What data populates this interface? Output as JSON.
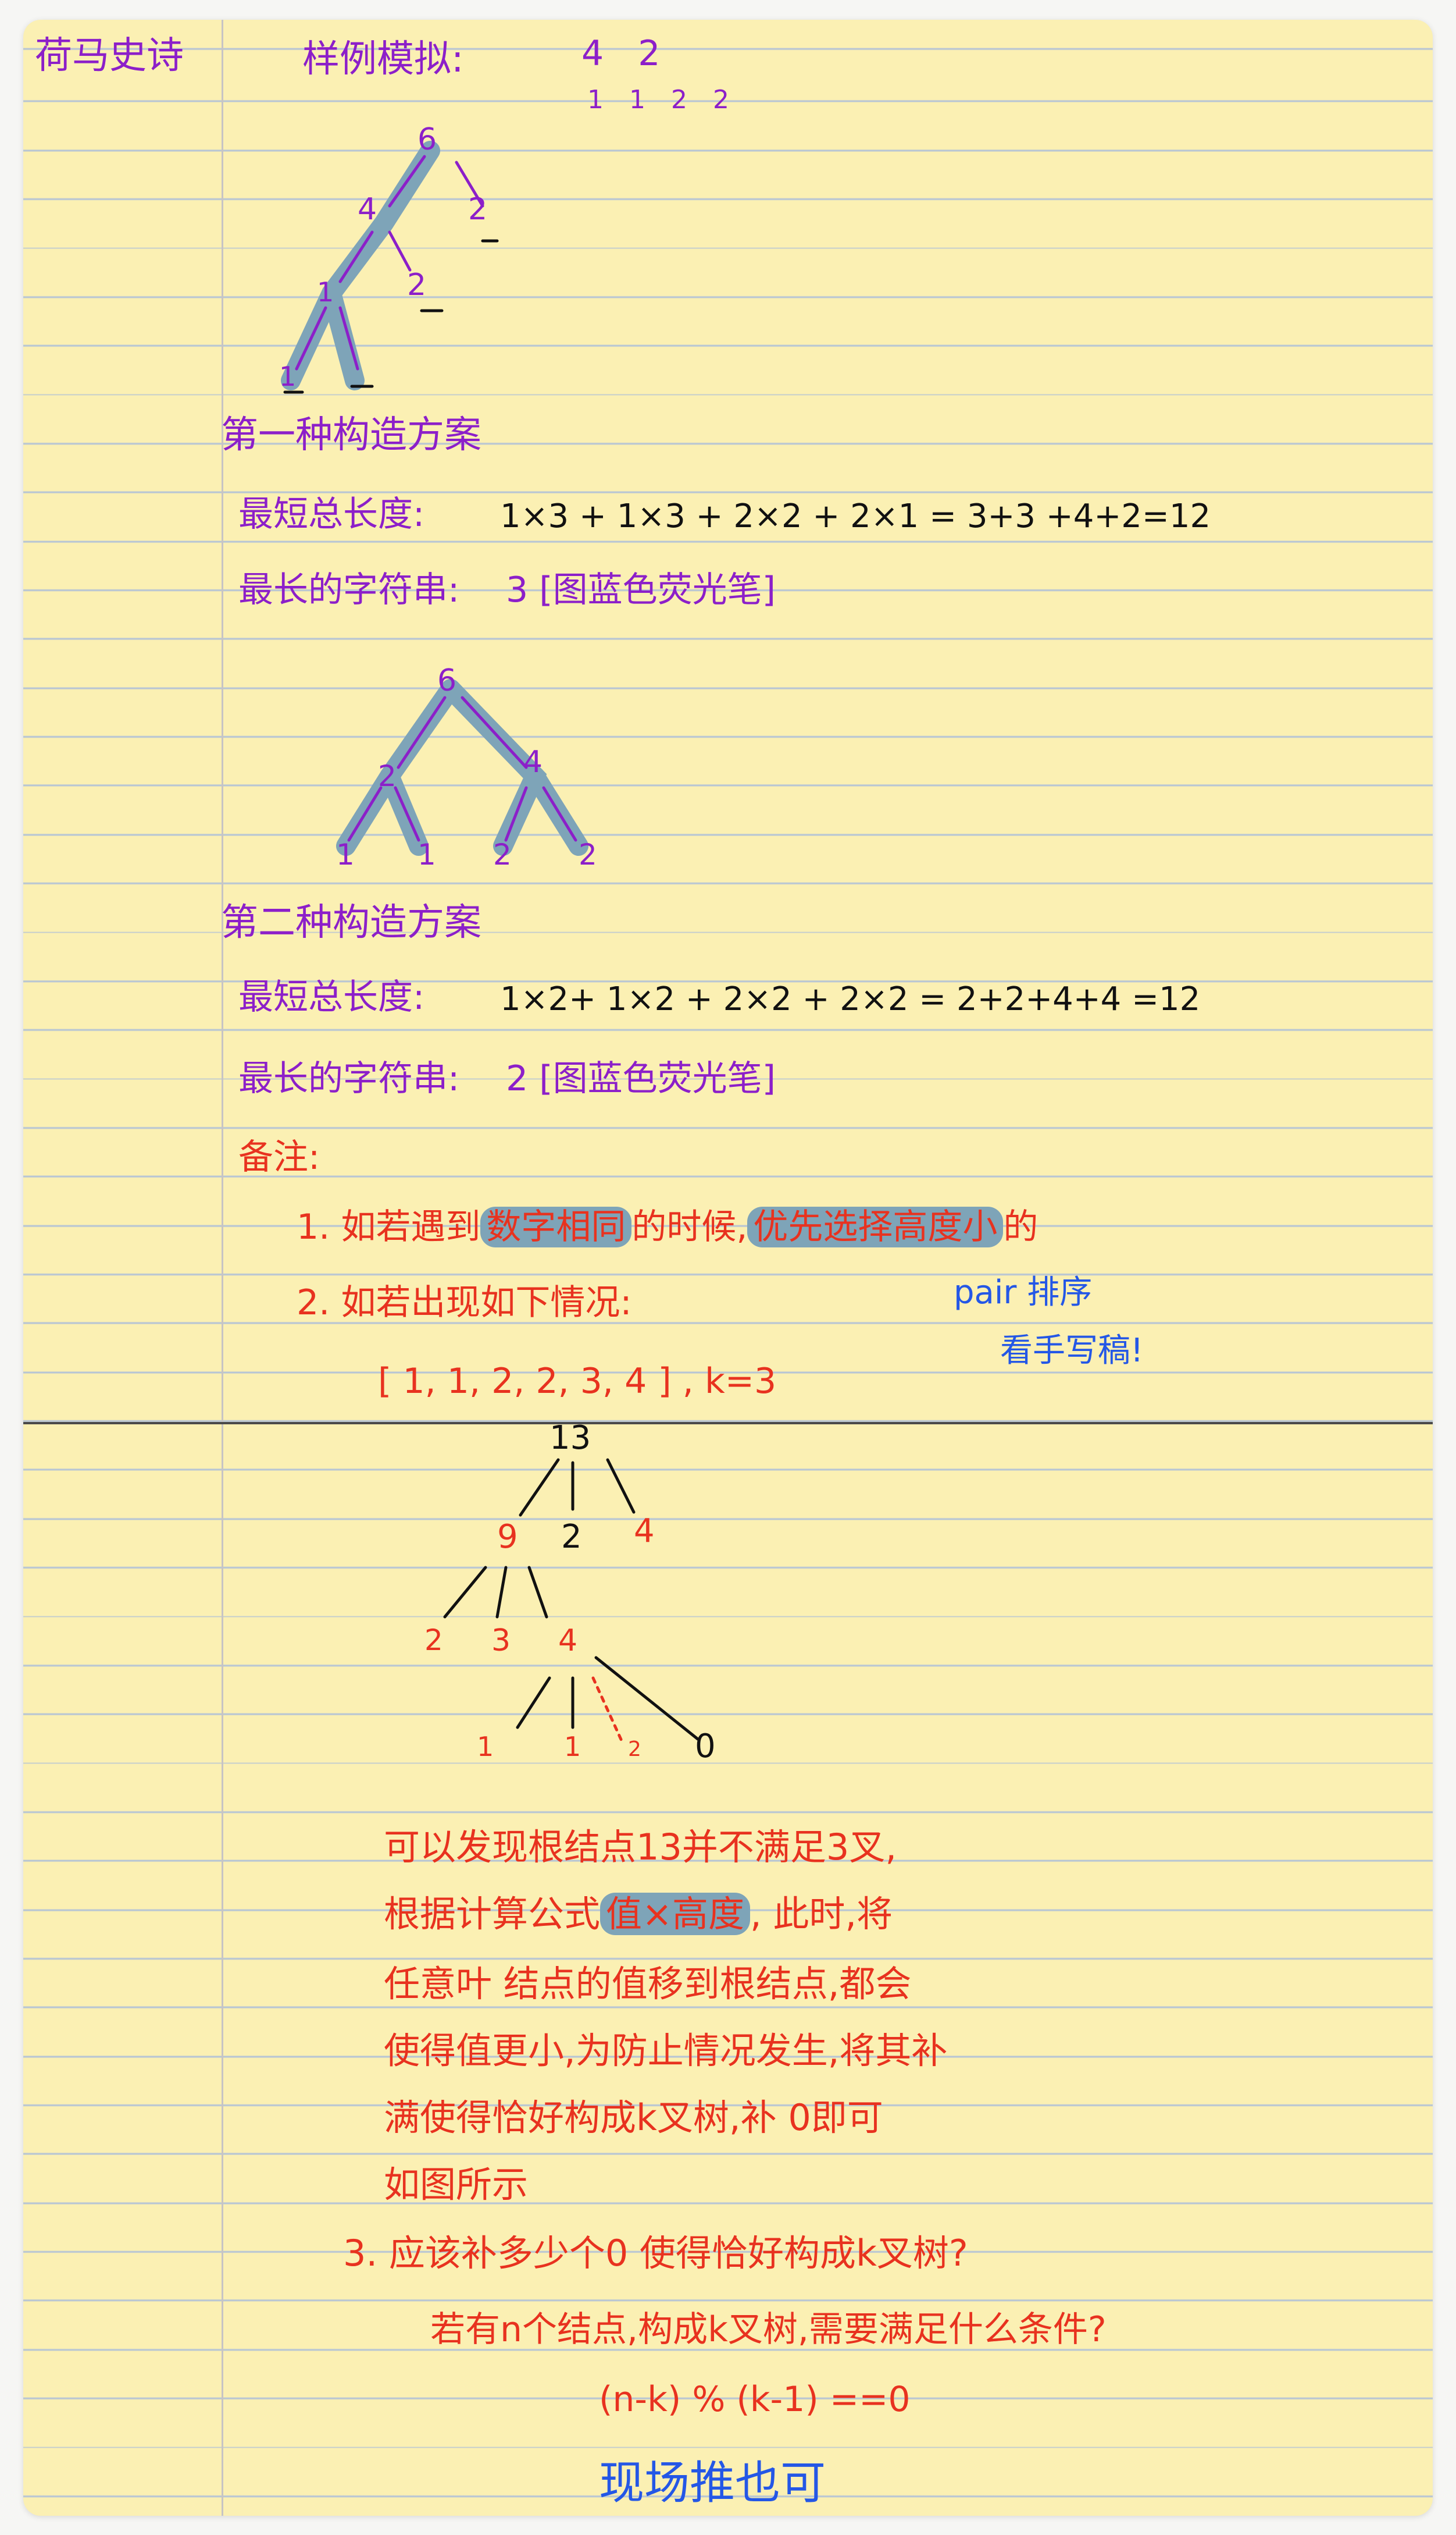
{
  "header": {
    "author": "荷马史诗",
    "sample_title": "样例模拟:",
    "sample_nk": "4 2",
    "sample_weights": "1 1 2 2"
  },
  "tree1": {
    "nodes": [
      "6",
      "4",
      "2",
      "2",
      "1",
      "1"
    ]
  },
  "scheme1": {
    "title": "第一种构造方案",
    "total_label": "最短总长度:",
    "total_expr": "1×3 + 1×3 + 2×2 + 2×1 = 3+3 +4+2=12",
    "max_label": "最长的字符串:",
    "max_expr": "3 [图蓝色荧光笔]"
  },
  "tree2": {
    "nodes": [
      "6",
      "2",
      "4",
      "1",
      "1",
      "2",
      "2"
    ]
  },
  "scheme2": {
    "title": "第二种构造方案",
    "total_label": "最短总长度:",
    "total_expr": "1×2+ 1×2 + 2×2 + 2×2 = 2+2+4+4 =12",
    "max_label": "最长的字符串:",
    "max_expr": "2 [图蓝色荧光笔]"
  },
  "notes": {
    "title": "备注:",
    "note1_prefix": "1. 如若遇到",
    "note1_hl1": "数字相同",
    "note1_mid": "的时候,",
    "note1_hl2": "优先选择高度小",
    "note1_suffix": "的",
    "note2": "2. 如若出现如下情况:",
    "note2_data": "[ 1, 1, 2, 2, 3, 4 ] , k=3",
    "aside_line1": "pair 排序",
    "aside_line2": "看手写稿!"
  },
  "tree3": {
    "nodes": [
      "13",
      "9",
      "2",
      "4",
      "2",
      "3",
      "4",
      "1",
      "1",
      "2",
      "0"
    ]
  },
  "explanation": {
    "line1": "可以发现根结点13并不满足3叉,",
    "line2_prefix": "根据计算公式",
    "line2_hl": "值×高度",
    "line2_suffix": ", 此时,将",
    "line3": "任意叶 结点的值移到根结点,都会",
    "line4": "使得值更小,为防止情况发生,将其补",
    "line5": "满使得恰好构成k叉树,补 0即可",
    "line6": "如图所示"
  },
  "question": {
    "line1": "3. 应该补多少个0 使得恰好构成k叉树?",
    "line2": "若有n个结点,构成k叉树,需要满足什么条件?",
    "formula": "(n-k) % (k-1) ==0",
    "conclusion": "现场推也可"
  },
  "colors": {
    "paper": "#fbf0b3",
    "rule": "#b7c5d4",
    "purple_ink": "#8c1fc9",
    "red_ink": "#e8321f",
    "blue_ink": "#2457e6",
    "highlighter": "#7ea4b8"
  }
}
